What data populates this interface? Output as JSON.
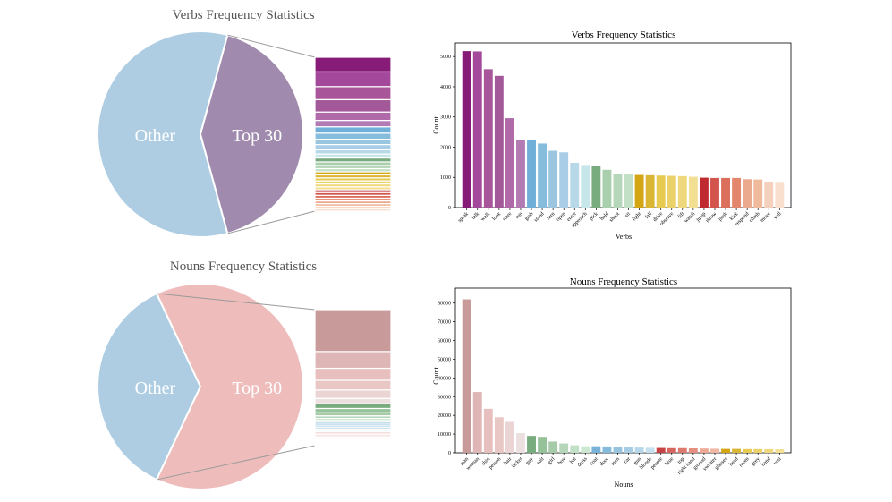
{
  "chart_data": [
    {
      "type": "pie",
      "title": "Verbs Frequency Statistics",
      "slices": [
        {
          "label": "Other",
          "share": 0.585,
          "color": "#aecde3"
        },
        {
          "label": "Top 30",
          "share": 0.415,
          "color": "#a08aae"
        }
      ],
      "breakdown_colors": [
        "#861c78",
        "#a4489c",
        "#a8559a",
        "#a3589a",
        "#b06aaa",
        "#b37bb4",
        "#70afd8",
        "#86bddc",
        "#9ac6df",
        "#a9cde6",
        "#b7d8e7",
        "#c6e6ea",
        "#78ab7e",
        "#a9cfad",
        "#b5d6b8",
        "#c1e0c5",
        "#d4a614",
        "#dbb634",
        "#e7cb50",
        "#ebd16a",
        "#efd87c",
        "#f2df92",
        "#bf2a30",
        "#d3544d",
        "#dc6e5c",
        "#e3866c",
        "#ebaa8d",
        "#f0bb9d",
        "#f5d0bc",
        "#f9dfcd"
      ]
    },
    {
      "type": "bar",
      "title": "Verbs Frequency Statistics",
      "xlabel": "Verbs",
      "ylabel": "Count",
      "ylim": [
        0,
        5450
      ],
      "yticks": [
        0,
        1000,
        2000,
        3000,
        4000,
        5000
      ],
      "categories": [
        "speak",
        "talk",
        "walk",
        "look",
        "stare",
        "run",
        "grab",
        "stand",
        "turn",
        "open",
        "enter",
        "approach",
        "pick",
        "hold",
        "shoot",
        "sit",
        "fight",
        "fall",
        "drive",
        "observe",
        "lift",
        "watch",
        "jump",
        "throw",
        "push",
        "kick",
        "respond",
        "climb",
        "move",
        "yell"
      ],
      "values": [
        5180,
        5170,
        4580,
        4360,
        2960,
        2240,
        2230,
        2120,
        1880,
        1830,
        1480,
        1410,
        1390,
        1250,
        1120,
        1100,
        1080,
        1070,
        1060,
        1050,
        1040,
        1020,
        990,
        980,
        980,
        980,
        940,
        930,
        860,
        850
      ],
      "colors": [
        "#861c78",
        "#a4489c",
        "#a8559a",
        "#a3589a",
        "#b06aaa",
        "#b37bb4",
        "#70afd8",
        "#86bddc",
        "#9ac6df",
        "#a9cde6",
        "#b7d8e7",
        "#c6e6ea",
        "#78ab7e",
        "#a9cfad",
        "#b5d6b8",
        "#c1e0c5",
        "#d4a614",
        "#dbb634",
        "#e7cb50",
        "#ebd16a",
        "#efd87c",
        "#f2df92",
        "#bf2a30",
        "#d3544d",
        "#dc6e5c",
        "#e3866c",
        "#ebaa8d",
        "#f0bb9d",
        "#f5d0bc",
        "#f9dfcd"
      ]
    },
    {
      "type": "pie",
      "title": "Nouns Frequency Statistics",
      "slices": [
        {
          "label": "Other",
          "share": 0.36,
          "color": "#aecde3"
        },
        {
          "label": "Top 30",
          "share": 0.64,
          "color": "#eebcbb"
        }
      ],
      "breakdown_colors": [
        "#c89a9a",
        "#dfb6b6",
        "#e7bfbe",
        "#e9c7c5",
        "#ead5d4",
        "#ecdfe0",
        "#78ab7e",
        "#96c29a",
        "#a7cba9",
        "#b5d6b8",
        "#c1e0c5",
        "#cde8d1",
        "#78b2d8",
        "#84bbdc",
        "#96c4df",
        "#a6cde3",
        "#b6d7e9",
        "#c5e0ef",
        "#c94243",
        "#d7655f",
        "#dd7a70",
        "#e58f80",
        "#eda995",
        "#f1b7a4",
        "#d4a614",
        "#dbb634",
        "#e7cb50",
        "#ebd16a",
        "#efd87c",
        "#f2df92"
      ]
    },
    {
      "type": "bar",
      "title": "Nouns Frequency Statistics",
      "xlabel": "Nouns",
      "ylabel": "Count",
      "ylim": [
        0,
        88000
      ],
      "yticks": [
        0,
        10000,
        20000,
        30000,
        40000,
        50000,
        60000,
        70000,
        80000
      ],
      "categories": [
        "man",
        "woman",
        "shirt",
        "person",
        "hair",
        "jacket",
        "guy",
        "suit",
        "girl",
        "boy",
        "hat",
        "dress",
        "coat",
        "door",
        "men",
        "car",
        "gun",
        "blonde",
        "people",
        "blue",
        "top",
        "right hand",
        "ground",
        "sweater",
        "glasses",
        "head",
        "room",
        "grey",
        "hand",
        "vest"
      ],
      "values": [
        82000,
        32500,
        23500,
        19000,
        16500,
        10500,
        9000,
        8500,
        6000,
        5000,
        4000,
        3500,
        3500,
        3400,
        3300,
        3200,
        2800,
        2700,
        2600,
        2500,
        2500,
        2400,
        2300,
        2200,
        2100,
        2100,
        2000,
        2000,
        1950,
        1900
      ],
      "colors": [
        "#c89a9a",
        "#dfb6b6",
        "#e7bfbe",
        "#e9c7c5",
        "#ead5d4",
        "#ecdfe0",
        "#78ab7e",
        "#96c29a",
        "#a7cba9",
        "#b5d6b8",
        "#c1e0c5",
        "#cde8d1",
        "#78b2d8",
        "#84bbdc",
        "#96c4df",
        "#a6cde3",
        "#b6d7e9",
        "#c5e0ef",
        "#c94243",
        "#d7655f",
        "#dd7a70",
        "#e58f80",
        "#eda995",
        "#f1b7a4",
        "#d4a614",
        "#dbb634",
        "#e7cb50",
        "#ebd16a",
        "#efd87c",
        "#f2df92"
      ]
    }
  ]
}
